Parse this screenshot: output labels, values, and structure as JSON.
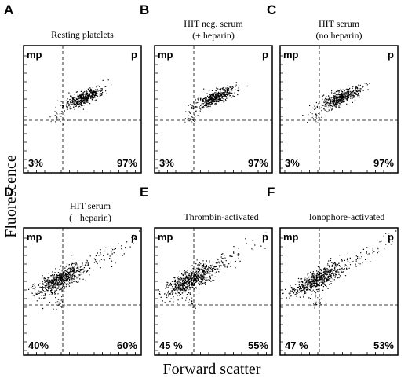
{
  "y_axis_label": "Fluorescence",
  "x_axis_label": "Forward scatter",
  "panels": [
    {
      "letter": "A",
      "caption": [
        "Resting platelets"
      ],
      "left_label": "mp",
      "right_label": "p",
      "left_percent": "3%",
      "right_percent": "97%"
    },
    {
      "letter": "B",
      "caption": [
        "HIT neg. serum",
        "(+ heparin)"
      ],
      "left_label": "mp",
      "right_label": "p",
      "left_percent": "3%",
      "right_percent": "97%"
    },
    {
      "letter": "C",
      "caption": [
        "HIT serum",
        "(no heparin)"
      ],
      "left_label": "mp",
      "right_label": "p",
      "left_percent": "3%",
      "right_percent": "97%"
    },
    {
      "letter": "D",
      "caption": [
        "HIT serum",
        "(+ heparin)"
      ],
      "left_label": "mp",
      "right_label": "p",
      "left_percent": "40%",
      "right_percent": "60%"
    },
    {
      "letter": "E",
      "caption": [
        "Thrombin-activated"
      ],
      "left_label": "mp",
      "right_label": "p",
      "left_percent": "45 %",
      "right_percent": "55%"
    },
    {
      "letter": "F",
      "caption": [
        "Ionophore-activated"
      ],
      "left_label": "mp",
      "right_label": "p",
      "left_percent": "47 %",
      "right_percent": "53%"
    }
  ]
}
